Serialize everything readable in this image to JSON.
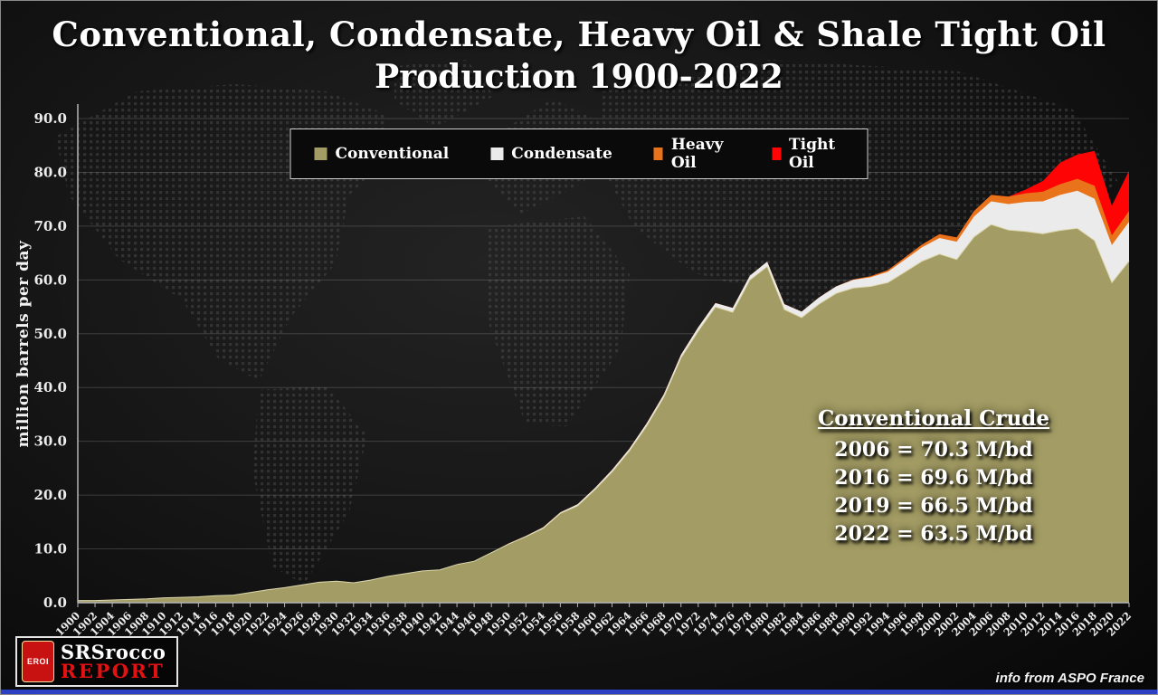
{
  "title": {
    "line1": "Conventional, Condensate, Heavy Oil & Shale Tight Oil",
    "line2": "Production 1900-2022"
  },
  "annotation": {
    "title": "Conventional Crude",
    "lines": [
      "2006 = 70.3 M/bd",
      "2016 = 69.6 M/bd",
      "2019 = 66.5 M/bd",
      "2022 = 63.5 M/bd"
    ]
  },
  "footer": {
    "credit": "info from ASPO France",
    "logo": {
      "badge": "EROI",
      "line1": "SRSrocco",
      "line2": "REPORT"
    }
  },
  "chart_data": {
    "type": "area",
    "stacked": true,
    "title": "Conventional, Condensate, Heavy Oil & Shale Tight Oil Production 1900-2022",
    "xlabel": "",
    "ylabel": "million barrels per day",
    "ylim": [
      0,
      90
    ],
    "ytick_step": 10,
    "grid": "horizontal",
    "legend_position": "top",
    "x": [
      1900,
      1902,
      1904,
      1906,
      1908,
      1910,
      1912,
      1914,
      1916,
      1918,
      1920,
      1922,
      1924,
      1926,
      1928,
      1930,
      1932,
      1934,
      1936,
      1938,
      1940,
      1942,
      1944,
      1946,
      1948,
      1950,
      1952,
      1954,
      1956,
      1958,
      1960,
      1962,
      1964,
      1966,
      1968,
      1970,
      1972,
      1974,
      1976,
      1978,
      1980,
      1982,
      1984,
      1986,
      1988,
      1990,
      1992,
      1994,
      1996,
      1998,
      2000,
      2002,
      2004,
      2006,
      2008,
      2010,
      2012,
      2014,
      2016,
      2018,
      2020,
      2022
    ],
    "series": [
      {
        "name": "Conventional",
        "color": "#a39c64",
        "edge_color": "#ddd7ae",
        "values": [
          0.4,
          0.4,
          0.5,
          0.6,
          0.7,
          0.9,
          1.0,
          1.1,
          1.3,
          1.4,
          1.9,
          2.4,
          2.8,
          3.3,
          3.8,
          4.0,
          3.7,
          4.2,
          4.9,
          5.4,
          5.9,
          6.1,
          7.1,
          7.7,
          9.3,
          10.9,
          12.3,
          13.8,
          16.6,
          18.0,
          21.0,
          24.3,
          28.2,
          32.8,
          38.2,
          45.5,
          50.5,
          55.0,
          54.0,
          60.0,
          62.5,
          54.5,
          53.0,
          55.5,
          57.5,
          58.5,
          58.8,
          59.5,
          61.5,
          63.5,
          64.8,
          63.8,
          68.0,
          70.3,
          69.3,
          69.0,
          68.6,
          69.2,
          69.6,
          67.3,
          59.5,
          63.5
        ]
      },
      {
        "name": "Condensate",
        "color": "#ebebeb",
        "values": [
          0,
          0,
          0,
          0,
          0,
          0,
          0,
          0,
          0,
          0,
          0,
          0,
          0,
          0,
          0,
          0,
          0,
          0,
          0,
          0,
          0,
          0,
          0,
          0,
          0,
          0.1,
          0.1,
          0.2,
          0.2,
          0.3,
          0.3,
          0.4,
          0.4,
          0.5,
          0.5,
          0.6,
          0.7,
          0.7,
          0.8,
          0.8,
          0.9,
          1.0,
          1.1,
          1.2,
          1.3,
          1.5,
          1.7,
          2.0,
          2.3,
          2.6,
          3.0,
          3.3,
          3.8,
          4.3,
          4.8,
          5.5,
          6.0,
          6.6,
          7.0,
          7.8,
          7.0,
          7.3
        ]
      },
      {
        "name": "Heavy Oil",
        "color": "#e8731a",
        "values": [
          0,
          0,
          0,
          0,
          0,
          0,
          0,
          0,
          0,
          0,
          0,
          0,
          0,
          0,
          0,
          0,
          0,
          0,
          0,
          0,
          0,
          0,
          0,
          0,
          0,
          0,
          0,
          0,
          0,
          0,
          0,
          0,
          0,
          0,
          0,
          0,
          0,
          0,
          0,
          0,
          0,
          0,
          0,
          0,
          0,
          0.1,
          0.2,
          0.3,
          0.4,
          0.5,
          0.7,
          0.8,
          1.0,
          1.2,
          1.4,
          1.6,
          1.8,
          2.0,
          2.2,
          2.4,
          1.8,
          2.0
        ]
      },
      {
        "name": "Tight Oil",
        "color": "#fe0404",
        "values": [
          0,
          0,
          0,
          0,
          0,
          0,
          0,
          0,
          0,
          0,
          0,
          0,
          0,
          0,
          0,
          0,
          0,
          0,
          0,
          0,
          0,
          0,
          0,
          0,
          0,
          0,
          0,
          0,
          0,
          0,
          0,
          0,
          0,
          0,
          0,
          0,
          0,
          0,
          0,
          0,
          0,
          0,
          0,
          0,
          0,
          0,
          0,
          0,
          0,
          0,
          0,
          0,
          0,
          0,
          0,
          0.7,
          2.0,
          4.0,
          4.5,
          6.5,
          5.5,
          7.5
        ]
      }
    ],
    "annotations": [
      {
        "label": "Conventional Crude",
        "values": [
          "2006 = 70.3 M/bd",
          "2016 = 69.6 M/bd",
          "2019 = 66.5 M/bd",
          "2022 = 63.5 M/bd"
        ]
      }
    ]
  }
}
